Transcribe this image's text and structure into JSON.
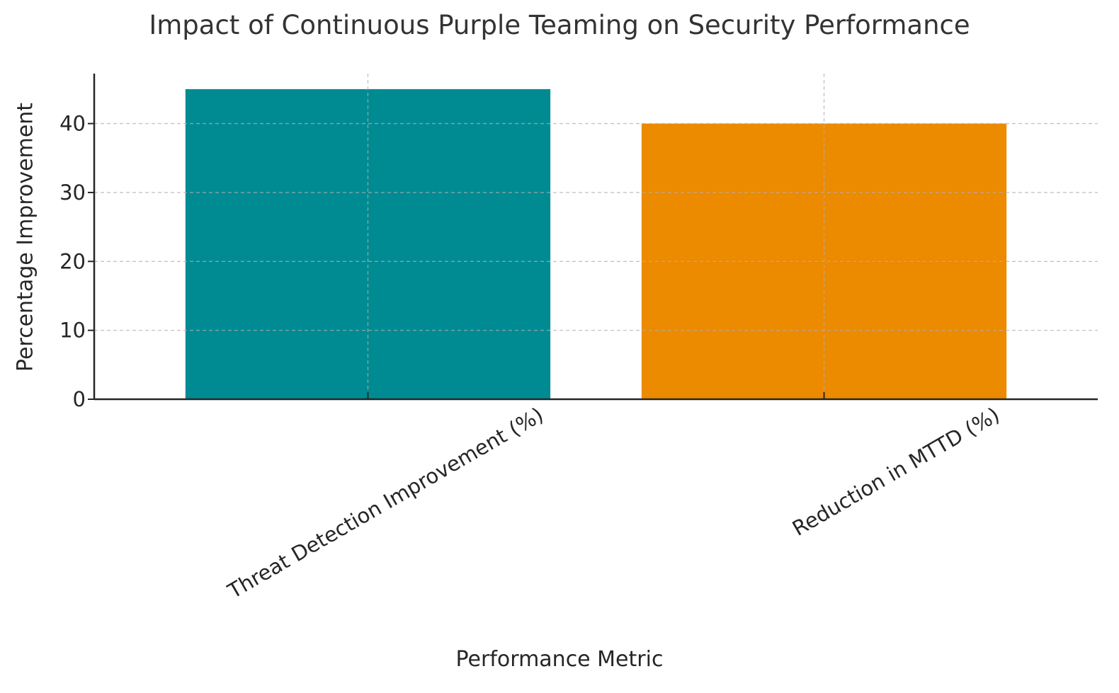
{
  "chart_data": {
    "type": "bar",
    "title": "Impact of Continuous Purple Teaming on Security Performance",
    "xlabel": "Performance Metric",
    "ylabel": "Percentage Improvement",
    "categories": [
      "Threat Detection Improvement (%)",
      "Reduction in MTTD (%)"
    ],
    "values": [
      45,
      40
    ],
    "colors": [
      "#008b93",
      "#ec8a00"
    ],
    "ylim": [
      0,
      47.25
    ],
    "yticks": [
      0,
      10,
      20,
      30,
      40
    ],
    "grid": true,
    "legend": "none"
  }
}
